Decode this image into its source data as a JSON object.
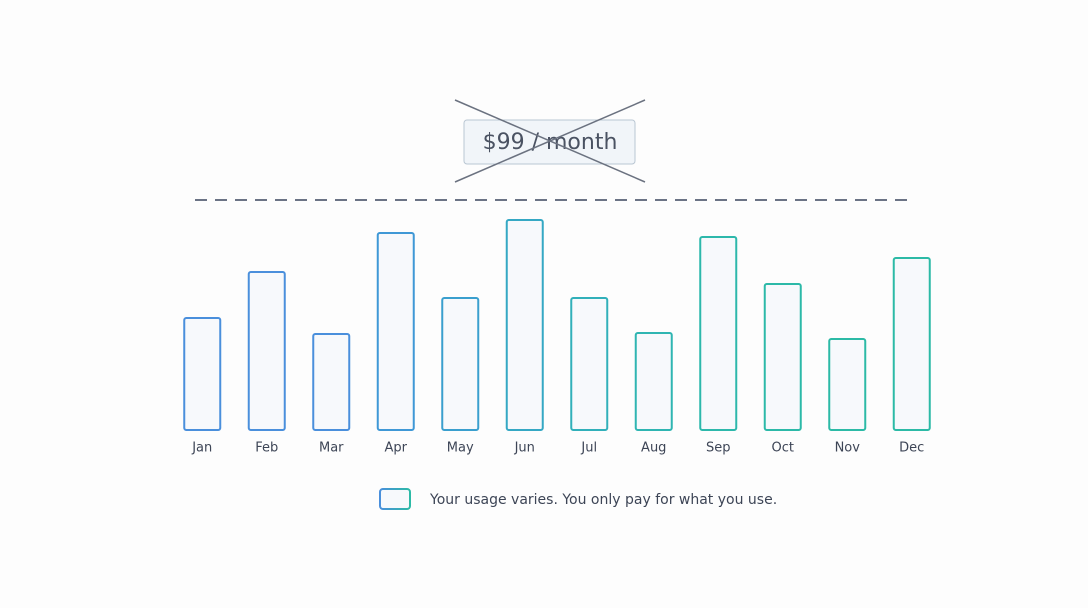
{
  "chart_data": {
    "type": "bar",
    "price_label": "$99 / month",
    "categories": [
      "Jan",
      "Feb",
      "Mar",
      "Apr",
      "May",
      "Jun",
      "Jul",
      "Aug",
      "Sep",
      "Oct",
      "Nov",
      "Dec"
    ],
    "series": [
      {
        "name": "Your usage varies. You only pay for what you use.",
        "values": [
          112,
          158,
          96,
          197,
          132,
          210,
          132,
          97,
          193,
          146,
          91,
          172
        ],
        "colors": [
          "#4a8fdc",
          "#4a8fdc",
          "#4a8fdc",
          "#3f98d6",
          "#3a9fce",
          "#35a8c4",
          "#31b0ba",
          "#2fb5b2",
          "#2db8ab",
          "#2cb9a8",
          "#2cbaa6",
          "#2cbaa6"
        ]
      }
    ],
    "ylim": [
      0,
      230
    ]
  }
}
